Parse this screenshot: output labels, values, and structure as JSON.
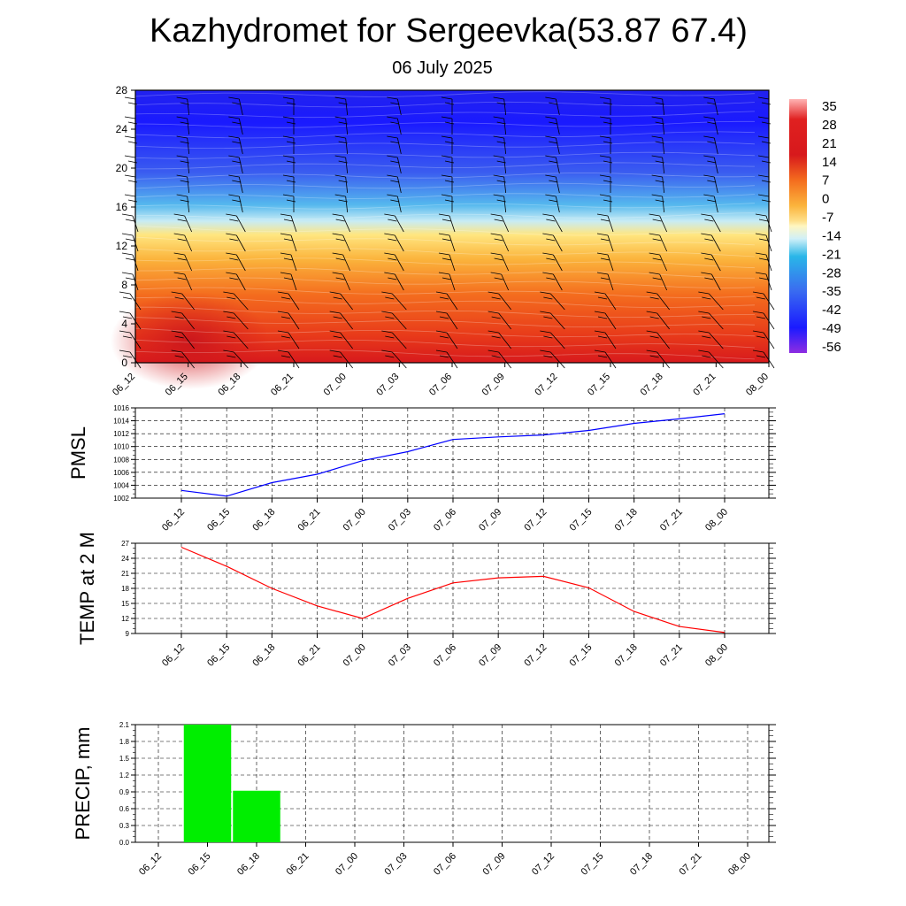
{
  "title": "Kazhydromet for Sergeevka(53.87 67.4)",
  "subtitle": "06 July 2025",
  "time_labels": [
    "06_12",
    "06_15",
    "06_18",
    "06_21",
    "07_00",
    "07_03",
    "07_06",
    "07_09",
    "07_12",
    "07_15",
    "07_18",
    "07_21",
    "08_00"
  ],
  "chart_data": [
    {
      "type": "heatmap",
      "title": "",
      "y_ticks": [
        0,
        4,
        8,
        12,
        16,
        20,
        24,
        28
      ],
      "ylim": [
        0,
        28
      ],
      "x": [
        "06_12",
        "06_15",
        "06_18",
        "06_21",
        "07_00",
        "07_03",
        "07_06",
        "07_09",
        "07_12",
        "07_15",
        "07_18",
        "07_21",
        "08_00"
      ],
      "colorbar_labels": [
        "35",
        "28",
        "21",
        "14",
        "7",
        "0",
        "-7",
        "-14",
        "-21",
        "-28",
        "-35",
        "-42",
        "-49",
        "-56"
      ],
      "colorbar_range": [
        -63,
        42
      ],
      "overlay": "wind barbs",
      "colors": {
        "red": "#d7191c",
        "orange": "#f46d1e",
        "yellow": "#fee08b",
        "cyan": "#29b6e8",
        "blue": "#1a1aff",
        "violet": "#8e2de2"
      }
    },
    {
      "type": "line",
      "ylabel": "PMSL",
      "x": [
        "06_12",
        "06_15",
        "06_18",
        "06_21",
        "07_00",
        "07_03",
        "07_06",
        "07_09",
        "07_12",
        "07_15",
        "07_18",
        "07_21",
        "08_00"
      ],
      "series": [
        {
          "values": [
            1003.2,
            1002.3,
            1004.4,
            1005.7,
            1007.8,
            1009.2,
            1011.1,
            1011.5,
            1011.8,
            1012.5,
            1013.6,
            1014.3,
            1015.1
          ],
          "color": "#0000ff"
        }
      ],
      "y_ticks": [
        1002,
        1004,
        1006,
        1008,
        1010,
        1012,
        1014,
        1016
      ],
      "ylim": [
        1002,
        1016
      ],
      "grid": true
    },
    {
      "type": "line",
      "ylabel": "TEMP at 2 M",
      "x": [
        "06_12",
        "06_15",
        "06_18",
        "06_21",
        "07_00",
        "07_03",
        "07_06",
        "07_09",
        "07_12",
        "07_15",
        "07_18",
        "07_21",
        "08_00"
      ],
      "series": [
        {
          "values": [
            26.2,
            22.4,
            18.0,
            14.5,
            12.0,
            16.0,
            19.1,
            20.1,
            20.4,
            18.1,
            13.4,
            10.4,
            9.2
          ],
          "color": "#ff0000"
        }
      ],
      "y_ticks": [
        9,
        12,
        15,
        18,
        21,
        24,
        27
      ],
      "ylim": [
        9,
        27
      ],
      "grid": true
    },
    {
      "type": "bar",
      "ylabel": "PRECIP, mm",
      "categories": [
        "06_12",
        "06_15",
        "06_18",
        "06_21",
        "07_00",
        "07_03",
        "07_06",
        "07_09",
        "07_12",
        "07_15",
        "07_18",
        "07_21",
        "08_00"
      ],
      "values": [
        0,
        2.1,
        0.92,
        0,
        0,
        0,
        0,
        0,
        0,
        0,
        0,
        0,
        0
      ],
      "y_ticks": [
        "0.0",
        "0.3",
        "0.6",
        "0.9",
        "1.2",
        "1.5",
        "1.8",
        "2.1"
      ],
      "ylim": [
        0,
        2.1
      ],
      "bar_color": "#00ee00",
      "grid": true
    }
  ]
}
